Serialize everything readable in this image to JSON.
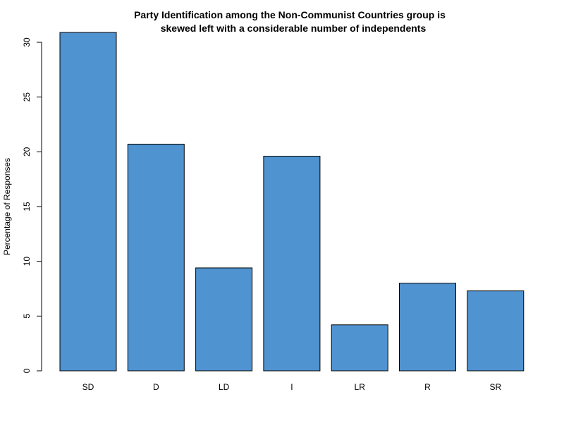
{
  "chart_data": {
    "type": "bar",
    "title_line1": "Party Identification among the Non-Communist Countries group is",
    "title_line2": "skewed left with a considerable number of independents",
    "xlabel": "",
    "ylabel": "Percentage of Responses",
    "categories": [
      "SD",
      "D",
      "LD",
      "I",
      "LR",
      "R",
      "SR"
    ],
    "values": [
      30.9,
      20.7,
      9.4,
      19.6,
      4.2,
      8.0,
      7.3
    ],
    "ylim": [
      0,
      30
    ],
    "yticks": [
      "0",
      "5",
      "10",
      "15",
      "20",
      "25",
      "30"
    ],
    "grid": false,
    "legend": "none",
    "colors": {
      "bar": "#4f93d0",
      "bar_stroke": "#000000",
      "axis": "#000000"
    }
  }
}
